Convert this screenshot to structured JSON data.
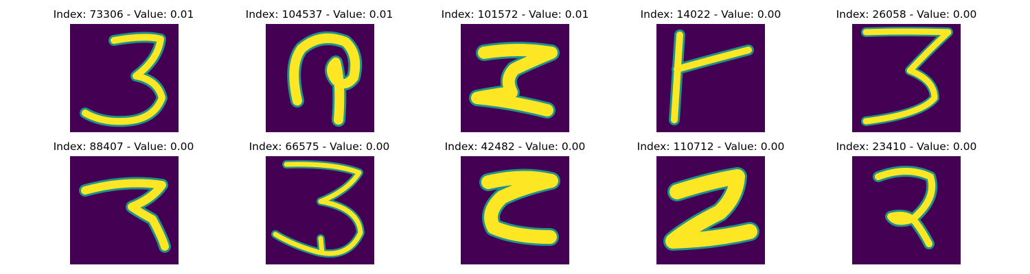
{
  "figure": {
    "background_color": "#440154",
    "stroke_color": "#fde725",
    "edge_color": "#21918c",
    "panels": [
      {
        "index": "73306",
        "value": "0.01",
        "title": "Index: 73306 - Value: 0.01",
        "glyph": "3"
      },
      {
        "index": "104537",
        "value": "0.01",
        "title": "Index: 104537 - Value: 0.01",
        "glyph": "hook"
      },
      {
        "index": "101572",
        "value": "0.01",
        "title": "Index: 101572 - Value: 0.01",
        "glyph": "zigzag"
      },
      {
        "index": "14022",
        "value": "0.00",
        "title": "Index: 14022 - Value: 0.00",
        "glyph": "T-rotated"
      },
      {
        "index": "26058",
        "value": "0.00",
        "title": "Index: 26058 - Value: 0.00",
        "glyph": "3"
      },
      {
        "index": "88407",
        "value": "0.00",
        "title": "Index: 88407 - Value: 0.00",
        "glyph": "7-curl"
      },
      {
        "index": "66575",
        "value": "0.00",
        "title": "Index: 66575 - Value: 0.00",
        "glyph": "3"
      },
      {
        "index": "42482",
        "value": "0.00",
        "title": "Index: 42482 - Value: 0.00",
        "glyph": "C-bracket"
      },
      {
        "index": "110712",
        "value": "0.00",
        "title": "Index: 110712 - Value: 0.00",
        "glyph": "Z"
      },
      {
        "index": "23410",
        "value": "0.00",
        "title": "Index: 23410 - Value: 0.00",
        "glyph": "2-curl"
      }
    ]
  }
}
